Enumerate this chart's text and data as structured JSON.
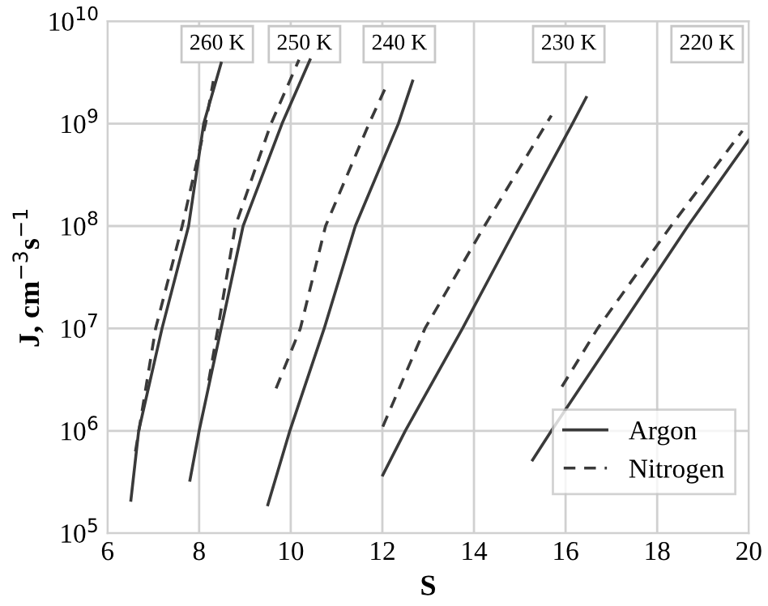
{
  "chart_data": {
    "type": "line",
    "xlabel": "S",
    "ylabel": "J, cm$^{−3}$s$^{−1}$",
    "log": "y",
    "grid": true,
    "legend": "bottom right",
    "xlim": [
      6,
      20
    ],
    "xticks": [
      6,
      8,
      10,
      12,
      14,
      16,
      18,
      20
    ],
    "ylim": [
      100000,
      10000000000
    ],
    "yticks": [
      {
        "value": 100000,
        "label": "10$^{5}$"
      },
      {
        "value": 1000000,
        "label": "10$^{6}$"
      },
      {
        "value": 10000000,
        "label": "10$^{7}$"
      },
      {
        "value": 100000000,
        "label": "10$^{8}$"
      },
      {
        "value": 1000000000,
        "label": "10$^{9}$"
      },
      {
        "value": 10000000000,
        "label": "10$^{10}$"
      }
    ],
    "annotations": [
      "260 K",
      "250 K",
      "240 K",
      "230 K",
      "220 K"
    ],
    "series": [
      {
        "name": "Argon",
        "color": "#3a3a3a",
        "line_style": "solid",
        "x": [
          6.51,
          6.68,
          7.19,
          7.77,
          8.1,
          8.48
        ],
        "values": [
          210000,
          1000000,
          10000000,
          100000000,
          1000000000,
          3900000000
        ]
      },
      {
        "name": "Nitrogen",
        "color": "#3a3a3a",
        "line_style": "dashed",
        "x": [
          6.61,
          7.05,
          7.63,
          8.14,
          8.31
        ],
        "values": [
          630000,
          10000000,
          100000000,
          1000000000,
          2600000000
        ]
      },
      {
        "color": "#3a3a3a",
        "line_style": "solid",
        "x": [
          7.8,
          8.0,
          8.48,
          8.96,
          9.81,
          10.42
        ],
        "values": [
          330000,
          1000000,
          10000000,
          100000000,
          1000000000,
          4200000000
        ]
      },
      {
        "color": "#3a3a3a",
        "line_style": "dashed",
        "x": [
          8.21,
          8.41,
          8.79,
          9.57,
          10.18
        ],
        "values": [
          3100000,
          10000000,
          100000000,
          1000000000,
          4200000000
        ]
      },
      {
        "color": "#3a3a3a",
        "line_style": "solid",
        "x": [
          9.5,
          9.98,
          10.73,
          11.41,
          12.35,
          12.66
        ],
        "values": [
          190000,
          1000000,
          10000000,
          100000000,
          1000000000,
          2600000000
        ]
      },
      {
        "color": "#3a3a3a",
        "line_style": "dashed",
        "x": [
          9.68,
          10.21,
          10.76,
          11.71,
          12.08
        ],
        "values": [
          2600000,
          10000000,
          100000000,
          1000000000,
          2300000000
        ]
      },
      {
        "color": "#3a3a3a",
        "line_style": "solid",
        "x": [
          12.01,
          12.5,
          13.75,
          14.94,
          16.15,
          16.45
        ],
        "values": [
          370000,
          1000000,
          10000000,
          100000000,
          1000000000,
          1800000000
        ]
      },
      {
        "color": "#3a3a3a",
        "line_style": "dashed",
        "x": [
          12.01,
          12.93,
          14.23,
          15.58,
          15.69
        ],
        "values": [
          1100000,
          10000000,
          100000000,
          1000000000,
          1200000000
        ]
      },
      {
        "color": "#3a3a3a",
        "line_style": "solid",
        "x": [
          15.28,
          15.69,
          17.18,
          18.67,
          20.0
        ],
        "values": [
          520000,
          1000000,
          10000000,
          100000000,
          690000000
        ]
      },
      {
        "color": "#3a3a3a",
        "line_style": "dashed",
        "x": [
          15.92,
          16.7,
          18.3,
          19.86
        ],
        "values": [
          2700000,
          10000000,
          100000000,
          850000000
        ]
      }
    ]
  }
}
